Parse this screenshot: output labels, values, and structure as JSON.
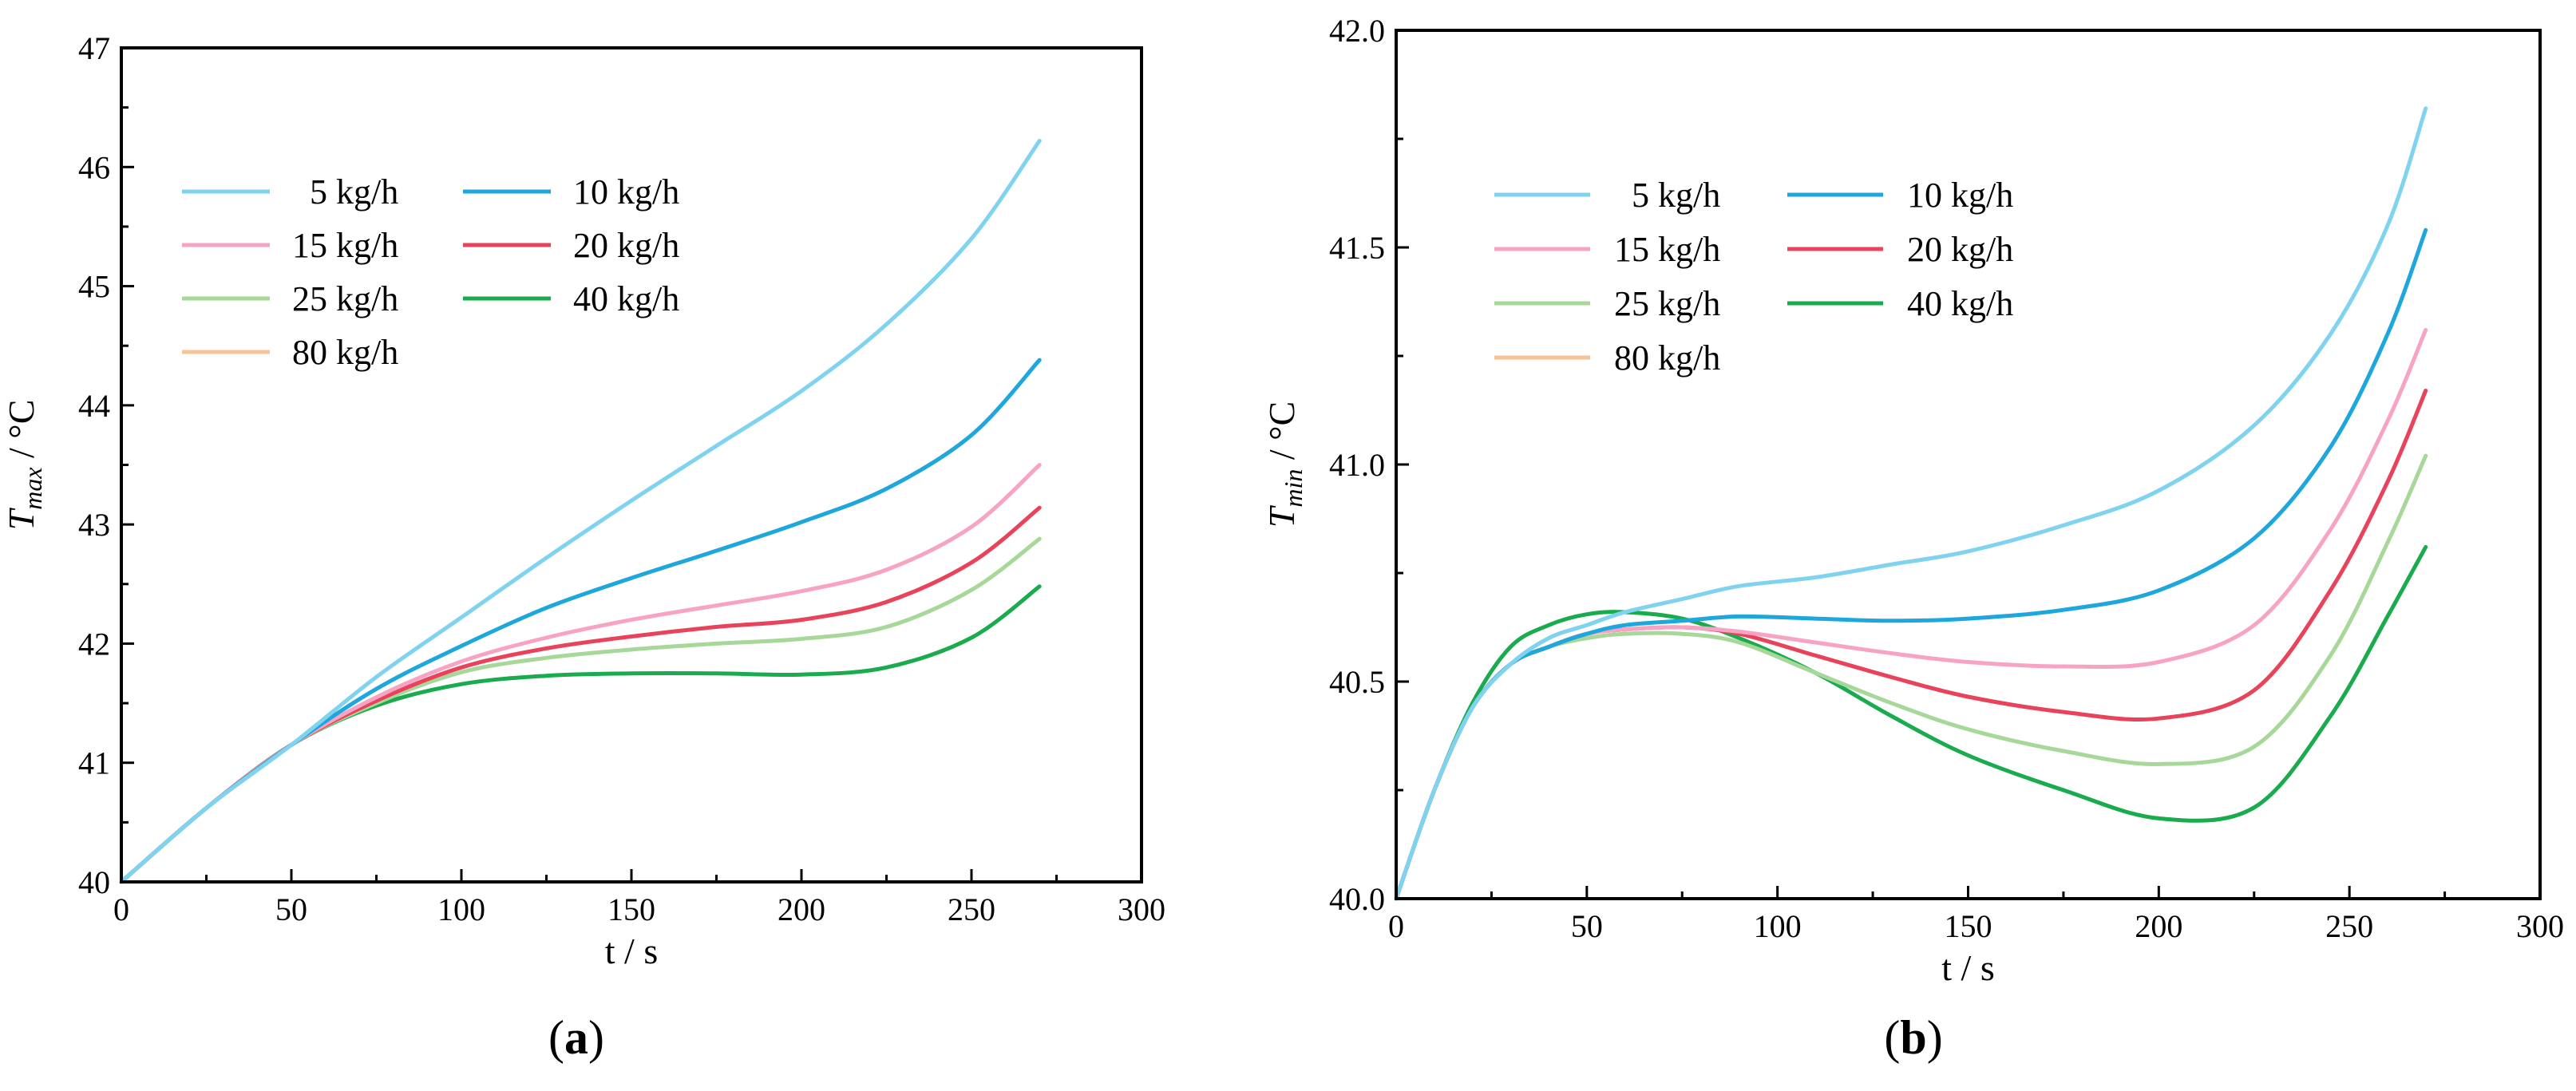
{
  "chart_data": [
    {
      "type": "line",
      "panel_label": "(a)",
      "panel_letter": "a",
      "ylabel_main": "T",
      "ylabel_sub": "max",
      "ylabel_unit": " / °C",
      "xlabel": "t / s",
      "xlim": [
        0,
        300
      ],
      "ylim": [
        40,
        47
      ],
      "xticks": [
        0,
        50,
        100,
        150,
        200,
        250,
        300
      ],
      "yticks": [
        40,
        41,
        42,
        43,
        44,
        45,
        46,
        47
      ],
      "xtick_labels": [
        "0",
        "50",
        "100",
        "150",
        "200",
        "250",
        "300"
      ],
      "ytick_labels": [
        "40",
        "41",
        "42",
        "43",
        "44",
        "45",
        "46",
        "47"
      ],
      "legend_position": "top-left",
      "series": [
        {
          "name": "  5 kg/h",
          "color": "#7fd3ee",
          "x": [
            0,
            25,
            50,
            75,
            100,
            125,
            150,
            175,
            200,
            225,
            250,
            270
          ],
          "y": [
            40,
            40.62,
            41.15,
            41.72,
            42.22,
            42.72,
            43.2,
            43.66,
            44.12,
            44.68,
            45.4,
            46.22
          ]
        },
        {
          "name": "10 kg/h",
          "color": "#1ea7dc",
          "x": [
            0,
            25,
            50,
            75,
            100,
            125,
            150,
            175,
            200,
            225,
            250,
            270
          ],
          "y": [
            40,
            40.62,
            41.15,
            41.62,
            41.98,
            42.3,
            42.55,
            42.78,
            43.02,
            43.3,
            43.75,
            44.38
          ]
        },
        {
          "name": "15 kg/h",
          "color": "#f7a4c4",
          "x": [
            0,
            25,
            50,
            75,
            100,
            125,
            150,
            175,
            200,
            225,
            250,
            270
          ],
          "y": [
            40,
            40.62,
            41.15,
            41.55,
            41.85,
            42.05,
            42.2,
            42.32,
            42.44,
            42.62,
            42.98,
            43.5
          ]
        },
        {
          "name": "20 kg/h",
          "color": "#e8435a",
          "x": [
            0,
            25,
            50,
            75,
            100,
            125,
            150,
            175,
            200,
            225,
            250,
            270
          ],
          "y": [
            40,
            40.62,
            41.15,
            41.52,
            41.8,
            41.96,
            42.06,
            42.14,
            42.2,
            42.35,
            42.68,
            43.14
          ]
        },
        {
          "name": "25 kg/h",
          "color": "#a8d79a",
          "x": [
            0,
            25,
            50,
            75,
            100,
            125,
            150,
            175,
            200,
            225,
            250,
            270
          ],
          "y": [
            40,
            40.62,
            41.15,
            41.5,
            41.76,
            41.88,
            41.95,
            42,
            42.04,
            42.14,
            42.45,
            42.88
          ]
        },
        {
          "name": "40 kg/h",
          "color": "#1aab4f",
          "x": [
            0,
            25,
            50,
            75,
            100,
            125,
            150,
            175,
            200,
            225,
            250,
            270
          ],
          "y": [
            40,
            40.62,
            41.15,
            41.48,
            41.66,
            41.73,
            41.75,
            41.75,
            41.74,
            41.8,
            42.05,
            42.48
          ]
        },
        {
          "name": "80 kg/h",
          "color": "#f8c497",
          "x": [],
          "y": []
        }
      ]
    },
    {
      "type": "line",
      "panel_label": "(b)",
      "panel_letter": "b",
      "ylabel_main": "T",
      "ylabel_sub": "min",
      "ylabel_unit": " / °C",
      "xlabel": "t / s",
      "xlim": [
        0,
        300
      ],
      "ylim": [
        40.0,
        42.0
      ],
      "xticks": [
        0,
        50,
        100,
        150,
        200,
        250,
        300
      ],
      "yticks": [
        40.0,
        40.5,
        41.0,
        41.5,
        42.0
      ],
      "xtick_labels": [
        "0",
        "50",
        "100",
        "150",
        "200",
        "250",
        "300"
      ],
      "ytick_labels": [
        "40.0",
        "40.5",
        "41.0",
        "41.5",
        "42.0"
      ],
      "legend_position": "top-left",
      "series": [
        {
          "name": "  5 kg/h",
          "color": "#7fd3ee",
          "x": [
            0,
            10,
            20,
            30,
            40,
            50,
            60,
            75,
            90,
            110,
            130,
            150,
            175,
            200,
            225,
            245,
            260,
            270
          ],
          "y": [
            40,
            40.25,
            40.44,
            40.54,
            40.6,
            40.63,
            40.66,
            40.69,
            40.72,
            40.74,
            40.77,
            40.8,
            40.86,
            40.94,
            41.09,
            41.3,
            41.55,
            41.82
          ]
        },
        {
          "name": "10 kg/h",
          "color": "#1ea7dc",
          "x": [
            0,
            10,
            20,
            30,
            40,
            50,
            60,
            75,
            90,
            110,
            130,
            150,
            175,
            200,
            225,
            245,
            260,
            270
          ],
          "y": [
            40,
            40.25,
            40.44,
            40.54,
            40.58,
            40.61,
            40.63,
            40.64,
            40.65,
            40.645,
            40.64,
            40.645,
            40.665,
            40.71,
            40.83,
            41.04,
            41.3,
            41.54
          ]
        },
        {
          "name": "15 kg/h",
          "color": "#f7a4c4",
          "x": [
            0,
            10,
            20,
            30,
            40,
            50,
            60,
            75,
            90,
            110,
            130,
            150,
            175,
            200,
            225,
            245,
            260,
            270
          ],
          "y": [
            40,
            40.25,
            40.44,
            40.54,
            40.58,
            40.61,
            40.62,
            40.625,
            40.615,
            40.59,
            40.565,
            40.545,
            40.535,
            40.545,
            40.63,
            40.85,
            41.1,
            41.31
          ]
        },
        {
          "name": "20 kg/h",
          "color": "#e8435a",
          "x": [
            0,
            10,
            20,
            30,
            40,
            50,
            60,
            75,
            90,
            110,
            130,
            150,
            175,
            200,
            225,
            245,
            260,
            270
          ],
          "y": [
            40,
            40.25,
            40.44,
            40.54,
            40.58,
            40.61,
            40.62,
            40.625,
            40.61,
            40.56,
            40.51,
            40.465,
            40.43,
            40.415,
            40.48,
            40.71,
            40.96,
            41.17
          ]
        },
        {
          "name": "25 kg/h",
          "color": "#a8d79a",
          "x": [
            0,
            10,
            20,
            30,
            40,
            50,
            60,
            75,
            90,
            110,
            130,
            150,
            175,
            200,
            225,
            245,
            260,
            270
          ],
          "y": [
            40,
            40.25,
            40.44,
            40.54,
            40.58,
            40.6,
            40.61,
            40.61,
            40.59,
            40.52,
            40.45,
            40.39,
            40.34,
            40.31,
            40.35,
            40.56,
            40.82,
            41.02
          ]
        },
        {
          "name": "40 kg/h",
          "color": "#1aab4f",
          "x": [
            0,
            10,
            20,
            30,
            40,
            50,
            60,
            75,
            90,
            110,
            130,
            150,
            175,
            200,
            225,
            245,
            260,
            270
          ],
          "y": [
            40,
            40.25,
            40.45,
            40.58,
            40.63,
            40.655,
            40.66,
            40.645,
            40.6,
            40.52,
            40.42,
            40.33,
            40.25,
            40.185,
            40.21,
            40.42,
            40.65,
            40.81
          ]
        },
        {
          "name": "80 kg/h",
          "color": "#f8c497",
          "x": [],
          "y": []
        }
      ]
    }
  ]
}
